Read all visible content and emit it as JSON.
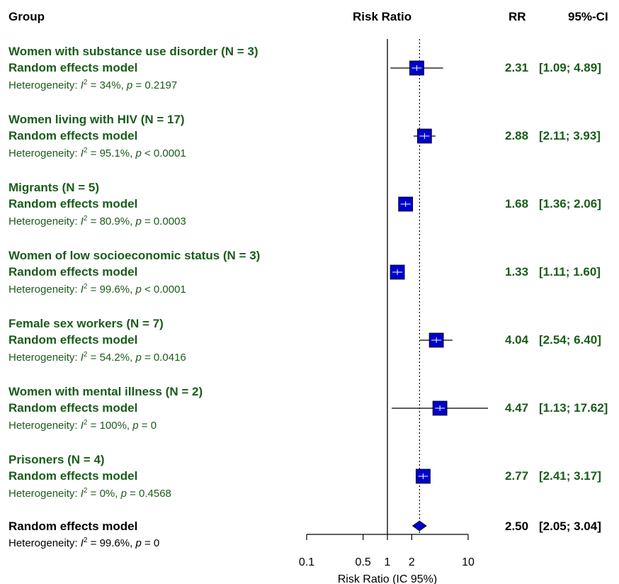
{
  "headers": {
    "group": "Group",
    "risk_ratio": "Risk Ratio",
    "rr": "RR",
    "ci": "95%-CI"
  },
  "colors": {
    "box": "#0000cc",
    "text_green": "#1a5c1a"
  },
  "chart_data": {
    "type": "forest",
    "xscale": "log",
    "xlim": [
      0.1,
      10
    ],
    "xticks": [
      "0.1",
      "0.5",
      "1",
      "2",
      "10"
    ],
    "xlabel": "Risk Ratio (IC 95%)",
    "reference_line": 1,
    "summary_line": 2.5,
    "subgroups": [
      {
        "title": "Women with substance use disorder  (N = 3)",
        "model": "Random effects model",
        "het_prefix": "Heterogeneity: ",
        "het_i2": " = 34%, ",
        "het_p": " = 0.2197",
        "rr": 2.31,
        "lo": 1.09,
        "hi": 4.89,
        "rr_text": "2.31",
        "ci_text": "[1.09;  4.89]"
      },
      {
        "title": "Women living with HIV  (N = 17)",
        "model": "Random effects model",
        "het_prefix": "Heterogeneity: ",
        "het_i2": " = 95.1%, ",
        "het_p": " < 0.0001",
        "rr": 2.88,
        "lo": 2.11,
        "hi": 3.93,
        "rr_text": "2.88",
        "ci_text": "[2.11;  3.93]"
      },
      {
        "title": "Migrants  (N = 5)",
        "model": "Random effects model",
        "het_prefix": "Heterogeneity: ",
        "het_i2": " = 80.9%, ",
        "het_p": " = 0.0003",
        "rr": 1.68,
        "lo": 1.36,
        "hi": 2.06,
        "rr_text": "1.68",
        "ci_text": "[1.36;  2.06]"
      },
      {
        "title": "Women of low socioeconomic status  (N = 3)",
        "model": "Random effects model",
        "het_prefix": "Heterogeneity: ",
        "het_i2": " = 99.6%, ",
        "het_p": " < 0.0001",
        "rr": 1.33,
        "lo": 1.11,
        "hi": 1.6,
        "rr_text": "1.33",
        "ci_text": "[1.11;  1.60]"
      },
      {
        "title": "Female sex workers  (N = 7)",
        "model": "Random effects model",
        "het_prefix": "Heterogeneity: ",
        "het_i2": " = 54.2%, ",
        "het_p": " = 0.0416",
        "rr": 4.04,
        "lo": 2.54,
        "hi": 6.4,
        "rr_text": "4.04",
        "ci_text": "[2.54;  6.40]"
      },
      {
        "title": "Women with mental illness  (N = 2)",
        "model": "Random effects model",
        "het_prefix": "Heterogeneity: ",
        "het_i2": " = 100%, ",
        "het_p": " = 0",
        "rr": 4.47,
        "lo": 1.13,
        "hi": 17.62,
        "rr_text": "4.47",
        "ci_text": "[1.13; 17.62]"
      },
      {
        "title": "Prisoners  (N = 4)",
        "model": "Random effects model",
        "het_prefix": "Heterogeneity: ",
        "het_i2": " = 0%, ",
        "het_p": " = 0.4568",
        "rr": 2.77,
        "lo": 2.41,
        "hi": 3.17,
        "rr_text": "2.77",
        "ci_text": "[2.41;  3.17]"
      }
    ],
    "overall": {
      "model": "Random effects model",
      "het_prefix": "Heterogeneity: ",
      "het_i2": " = 99.6%, ",
      "het_p": " = 0",
      "rr": 2.5,
      "lo": 2.05,
      "hi": 3.04,
      "rr_text": "2.50",
      "ci_text": "[2.05;  3.04]"
    }
  }
}
